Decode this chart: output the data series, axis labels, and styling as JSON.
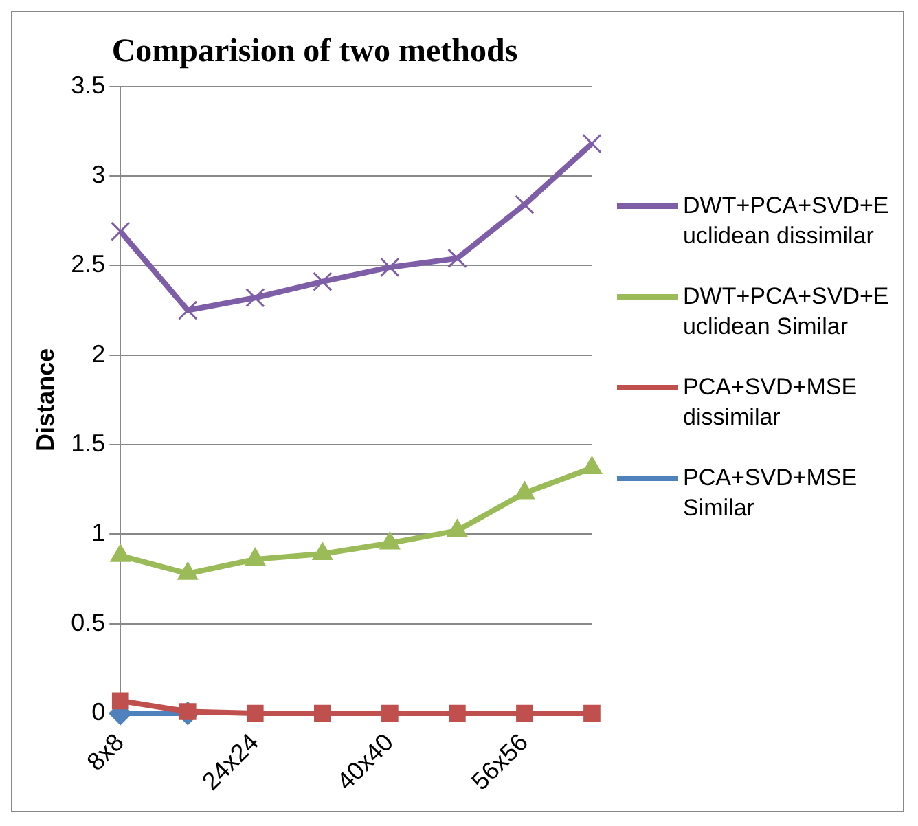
{
  "chart_data": {
    "type": "line",
    "title": "Comparision of two methods",
    "ylabel": "Distance",
    "categories": [
      "8x8",
      null,
      "24x24",
      null,
      "40x40",
      null,
      "56x56",
      null
    ],
    "series": [
      {
        "name": "DWT+PCA+SVD+Euclidean dissimilar",
        "color": "#7f5ea8",
        "marker": "cross",
        "values": [
          2.69,
          2.25,
          2.32,
          2.41,
          2.49,
          2.54,
          2.84,
          3.18
        ]
      },
      {
        "name": "DWT+PCA+SVD+Euclidean Similar",
        "color": "#9bbb59",
        "marker": "triangle",
        "values": [
          0.88,
          0.78,
          0.86,
          0.89,
          0.95,
          1.02,
          1.23,
          1.37
        ]
      },
      {
        "name": "PCA+SVD+MSE dissimilar",
        "color": "#c0504d",
        "marker": "square",
        "values": [
          0.07,
          0.01,
          0,
          0,
          0,
          0,
          0,
          0
        ]
      },
      {
        "name": "PCA+SVD+MSE Similar",
        "color": "#4f81bd",
        "marker": "diamond",
        "values": [
          0,
          0,
          null,
          null,
          null,
          null,
          null,
          null
        ]
      }
    ],
    "ylim": [
      0,
      3.5
    ],
    "yticks": [
      0,
      0.5,
      1,
      1.5,
      2,
      2.5,
      3,
      3.5
    ],
    "grid": "y",
    "legend": "right"
  }
}
